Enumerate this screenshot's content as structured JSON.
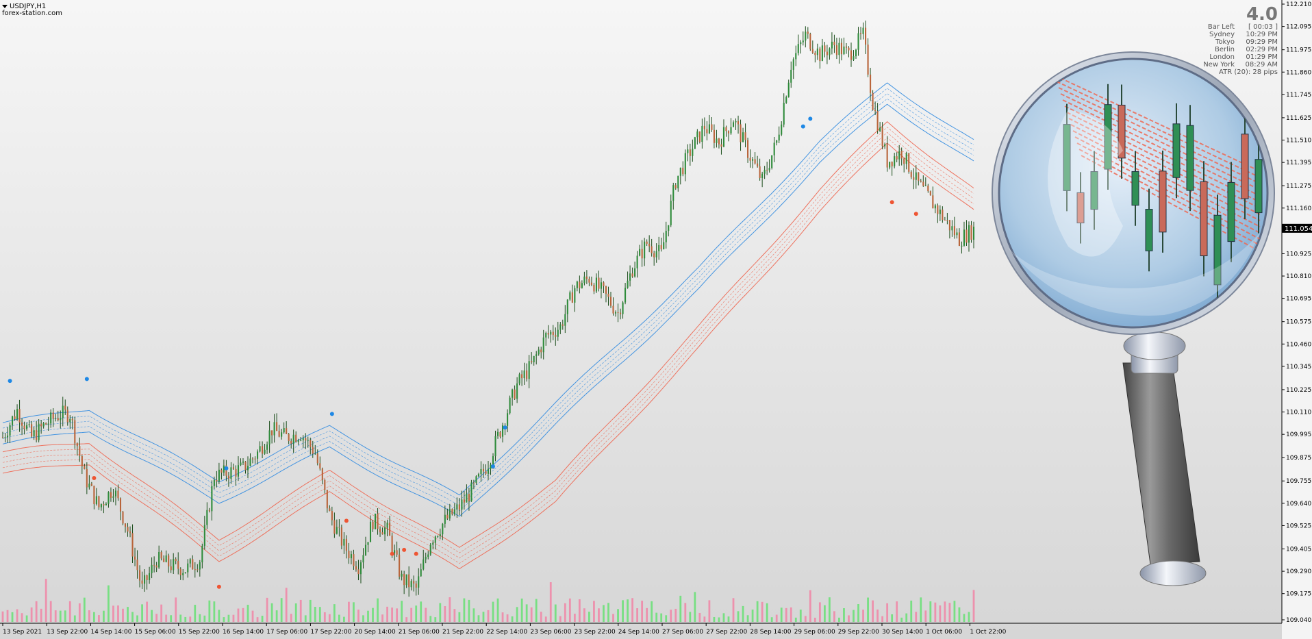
{
  "header": {
    "symbol": "USDJPY,H1",
    "site": "forex-station.com",
    "menu_icon": "triangle-down-icon"
  },
  "info_panel": {
    "version": "4.0",
    "bar_left_label": "Bar Left",
    "bar_left_value": "[ 00:03 ]",
    "sessions": [
      {
        "city": "Sydney",
        "time": "10:29 PM"
      },
      {
        "city": "Tokyo",
        "time": "09:29 PM"
      },
      {
        "city": "Berlin",
        "time": "02:29 PM"
      },
      {
        "city": "London",
        "time": "01:29 PM"
      },
      {
        "city": "New York",
        "time": "08:29 AM"
      }
    ],
    "atr": "ATR (20): 28 pips"
  },
  "colors": {
    "background_top": "#f6f6f6",
    "background_bottom": "#d8d8d8",
    "bull_candle": "#2e8b3a",
    "bear_candle": "#b8643a",
    "wick": "#1a4d1a",
    "upper_band": "#3a8fe0",
    "lower_band": "#ee6a55",
    "volume_up": "#6ee07a",
    "volume_down": "#f08aa8",
    "blue_dot": "#1e88e5",
    "red_dot": "#ee5533"
  },
  "decoration": {
    "icon": "magnifying-glass-icon"
  },
  "chart_data": {
    "type": "candlestick",
    "symbol": "USDJPY",
    "timeframe": "H1",
    "current_price": "111.054",
    "ylim": [
      109.04,
      112.21
    ],
    "y_ticks": [
      "112.210",
      "112.095",
      "111.975",
      "111.860",
      "111.745",
      "111.625",
      "111.510",
      "111.395",
      "111.275",
      "111.160",
      "111.054",
      "110.925",
      "110.810",
      "110.695",
      "110.575",
      "110.460",
      "110.345",
      "110.225",
      "110.110",
      "109.995",
      "109.875",
      "109.755",
      "109.640",
      "109.525",
      "109.405",
      "109.290",
      "109.175",
      "109.040"
    ],
    "x_ticks": [
      "13 Sep 2021",
      "13 Sep 22:00",
      "14 Sep 14:00",
      "15 Sep 06:00",
      "15 Sep 22:00",
      "16 Sep 14:00",
      "17 Sep 06:00",
      "17 Sep 22:00",
      "20 Sep 14:00",
      "21 Sep 06:00",
      "21 Sep 22:00",
      "22 Sep 14:00",
      "23 Sep 06:00",
      "23 Sep 22:00",
      "24 Sep 14:00",
      "27 Sep 06:00",
      "27 Sep 22:00",
      "28 Sep 14:00",
      "29 Sep 06:00",
      "29 Sep 22:00",
      "30 Sep 14:00",
      "1 Oct 06:00",
      "1 Oct 22:00"
    ],
    "close_path": [
      [
        0,
        109.98
      ],
      [
        6,
        110.12
      ],
      [
        12,
        109.98
      ],
      [
        18,
        110.05
      ],
      [
        24,
        110.1
      ],
      [
        28,
        110.1
      ],
      [
        34,
        109.78
      ],
      [
        40,
        109.62
      ],
      [
        46,
        109.72
      ],
      [
        52,
        109.5
      ],
      [
        58,
        109.2
      ],
      [
        64,
        109.35
      ],
      [
        70,
        109.32
      ],
      [
        76,
        109.3
      ],
      [
        82,
        109.35
      ],
      [
        88,
        109.78
      ],
      [
        94,
        109.8
      ],
      [
        100,
        109.82
      ],
      [
        106,
        109.9
      ],
      [
        112,
        110.02
      ],
      [
        118,
        109.98
      ],
      [
        124,
        110.0
      ],
      [
        130,
        109.9
      ],
      [
        136,
        109.58
      ],
      [
        142,
        109.42
      ],
      [
        148,
        109.32
      ],
      [
        154,
        109.55
      ],
      [
        160,
        109.5
      ],
      [
        166,
        109.25
      ],
      [
        172,
        109.2
      ],
      [
        178,
        109.45
      ],
      [
        184,
        109.55
      ],
      [
        190,
        109.62
      ],
      [
        196,
        109.72
      ],
      [
        202,
        109.85
      ],
      [
        208,
        110.05
      ],
      [
        214,
        110.25
      ],
      [
        220,
        110.35
      ],
      [
        226,
        110.5
      ],
      [
        232,
        110.55
      ],
      [
        238,
        110.75
      ],
      [
        244,
        110.8
      ],
      [
        250,
        110.72
      ],
      [
        256,
        110.62
      ],
      [
        262,
        110.85
      ],
      [
        268,
        110.98
      ],
      [
        274,
        110.92
      ],
      [
        280,
        111.3
      ],
      [
        286,
        111.45
      ],
      [
        292,
        111.58
      ],
      [
        298,
        111.5
      ],
      [
        304,
        111.62
      ],
      [
        310,
        111.45
      ],
      [
        316,
        111.3
      ],
      [
        322,
        111.5
      ],
      [
        328,
        111.9
      ],
      [
        334,
        112.05
      ],
      [
        340,
        111.95
      ],
      [
        346,
        112.0
      ],
      [
        352,
        111.95
      ],
      [
        358,
        112.05
      ],
      [
        362,
        111.7
      ],
      [
        368,
        111.4
      ],
      [
        374,
        111.45
      ],
      [
        380,
        111.3
      ],
      [
        386,
        111.2
      ],
      [
        392,
        111.1
      ],
      [
        398,
        111.0
      ],
      [
        404,
        111.05
      ]
    ],
    "bar_count": 405,
    "upper_band_path": [
      [
        0,
        110.0
      ],
      [
        36,
        110.07
      ],
      [
        90,
        109.7
      ],
      [
        136,
        109.98
      ],
      [
        190,
        109.62
      ],
      [
        230,
        110.1
      ],
      [
        290,
        110.8
      ],
      [
        340,
        111.45
      ],
      [
        368,
        111.75
      ],
      [
        404,
        111.45
      ]
    ],
    "lower_band_path": [
      [
        0,
        109.85
      ],
      [
        36,
        109.9
      ],
      [
        90,
        109.4
      ],
      [
        136,
        109.75
      ],
      [
        190,
        109.35
      ],
      [
        230,
        109.7
      ],
      [
        290,
        110.5
      ],
      [
        340,
        111.2
      ],
      [
        368,
        111.55
      ],
      [
        404,
        111.2
      ]
    ],
    "blue_dots": [
      [
        3,
        110.27
      ],
      [
        35,
        110.28
      ],
      [
        93,
        109.82
      ],
      [
        137,
        110.1
      ],
      [
        204,
        109.83
      ],
      [
        209,
        110.03
      ],
      [
        333,
        111.58
      ],
      [
        336,
        111.62
      ]
    ],
    "red_dots": [
      [
        38,
        109.77
      ],
      [
        90,
        109.21
      ],
      [
        143,
        109.55
      ],
      [
        162,
        109.38
      ],
      [
        167,
        109.4
      ],
      [
        172,
        109.38
      ],
      [
        370,
        111.19
      ],
      [
        380,
        111.13
      ]
    ],
    "volume_scale_max": 100,
    "volume_pattern": "alternating green/pink histogram along bottom edge"
  }
}
